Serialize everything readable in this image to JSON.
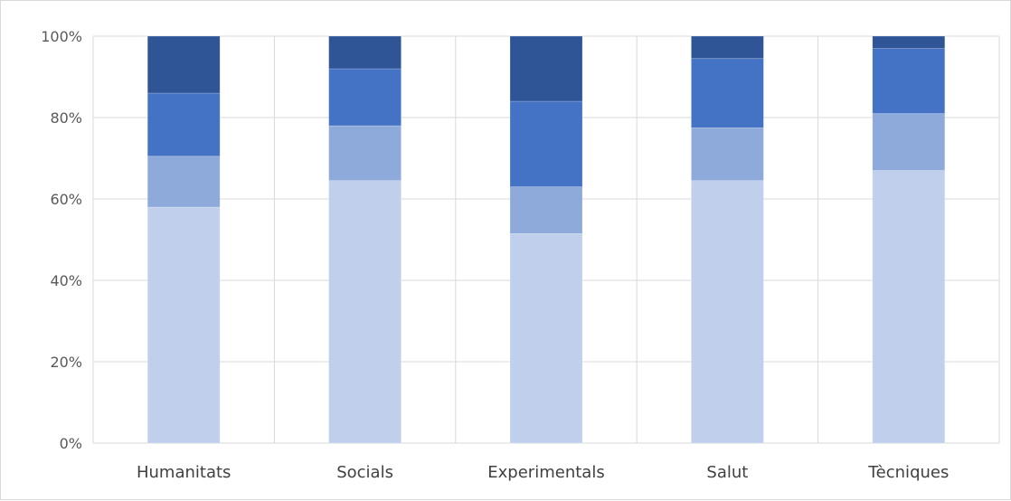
{
  "chart_data": {
    "type": "bar",
    "stacked": true,
    "normalized": true,
    "title": "",
    "xlabel": "",
    "ylabel": "",
    "ylim": [
      0,
      100
    ],
    "y_ticks": [
      "0%",
      "20%",
      "40%",
      "60%",
      "80%",
      "100%"
    ],
    "grid": "horizontal and vertical",
    "legend": "none",
    "categories": [
      "Humanitats",
      "Socials",
      "Experimentals",
      "Salut",
      "Tècniques"
    ],
    "series": [
      {
        "values": [
          58,
          64.5,
          51.5,
          64.5,
          67
        ],
        "color": "#c0d0ec"
      },
      {
        "values": [
          12.5,
          13.5,
          11.5,
          13,
          14
        ],
        "color": "#8eaadb"
      },
      {
        "values": [
          15.5,
          14,
          21,
          17,
          16
        ],
        "color": "#4472c4"
      },
      {
        "values": [
          14,
          8,
          16,
          5.5,
          3
        ],
        "color": "#2f5597"
      }
    ]
  }
}
